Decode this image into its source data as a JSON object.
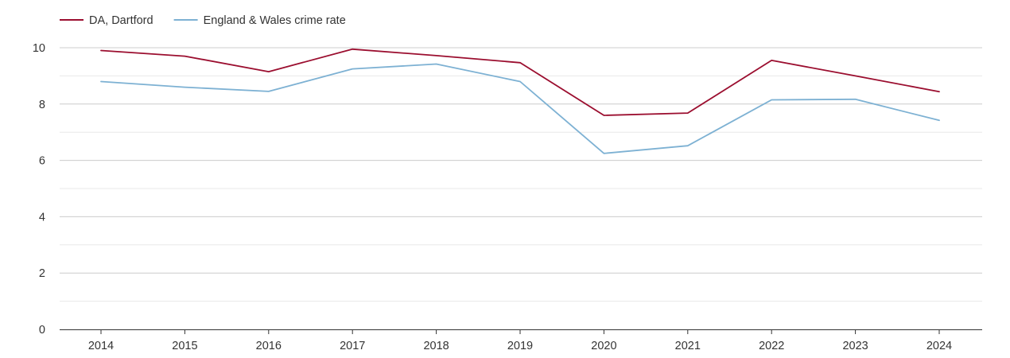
{
  "chart_data": {
    "type": "line",
    "title": "",
    "xlabel": "",
    "ylabel": "",
    "categories": [
      "2014",
      "2015",
      "2016",
      "2017",
      "2018",
      "2019",
      "2020",
      "2021",
      "2022",
      "2023",
      "2024"
    ],
    "series": [
      {
        "name": "DA, Dartford",
        "color": "#9b0e2f",
        "values": [
          9.9,
          9.7,
          9.15,
          9.95,
          9.72,
          9.47,
          7.6,
          7.68,
          9.55,
          9.0,
          8.44
        ]
      },
      {
        "name": "England & Wales crime rate",
        "color": "#7db1d3",
        "values": [
          8.8,
          8.6,
          8.45,
          9.25,
          9.42,
          8.8,
          6.25,
          6.52,
          8.15,
          8.17,
          7.42
        ]
      }
    ],
    "ylim": [
      0,
      10
    ],
    "yticks": [
      "0",
      "2",
      "4",
      "6",
      "8",
      "10"
    ],
    "grid": true,
    "legend": "top-left"
  }
}
